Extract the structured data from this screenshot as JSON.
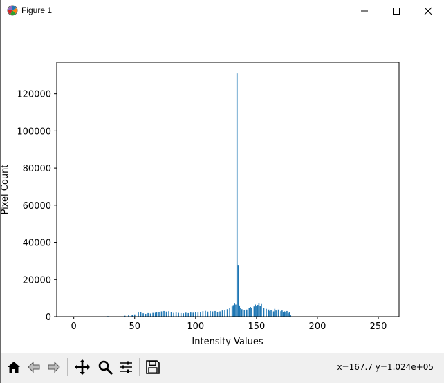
{
  "window": {
    "title": "Figure 1",
    "controls": [
      "minimize",
      "maximize",
      "close"
    ]
  },
  "toolbar": {
    "buttons": [
      "home-icon",
      "back-icon",
      "forward-icon",
      "pan-icon",
      "zoom-icon",
      "configure-subplots-icon",
      "save-icon"
    ],
    "coords_text": "x=167.7 y=1.024e+05"
  },
  "chart_data": {
    "type": "bar",
    "title": "",
    "xlabel": "Intensity Values",
    "ylabel": "Pixel Count",
    "xlim": [
      -14,
      267
    ],
    "ylim": [
      0,
      137000
    ],
    "xticks": [
      "0",
      "50",
      "100",
      "150",
      "200",
      "250"
    ],
    "yticks": [
      "0",
      "20000",
      "40000",
      "60000",
      "80000",
      "100000",
      "120000"
    ],
    "color": "#1f77b4",
    "grid": false,
    "bins": [
      [
        28,
        300
      ],
      [
        42,
        500
      ],
      [
        45,
        700
      ],
      [
        48,
        900
      ],
      [
        50,
        1200
      ],
      [
        53,
        2200
      ],
      [
        55,
        2400
      ],
      [
        57,
        1800
      ],
      [
        59,
        1500
      ],
      [
        61,
        1900
      ],
      [
        63,
        1700
      ],
      [
        65,
        2000
      ],
      [
        67,
        2100
      ],
      [
        68,
        2600
      ],
      [
        70,
        2300
      ],
      [
        72,
        2800
      ],
      [
        74,
        3000
      ],
      [
        76,
        2700
      ],
      [
        78,
        2900
      ],
      [
        80,
        2500
      ],
      [
        82,
        2000
      ],
      [
        84,
        2200
      ],
      [
        86,
        2000
      ],
      [
        88,
        1900
      ],
      [
        90,
        1800
      ],
      [
        92,
        2100
      ],
      [
        94,
        1900
      ],
      [
        96,
        2200
      ],
      [
        98,
        2100
      ],
      [
        100,
        2400
      ],
      [
        102,
        2200
      ],
      [
        104,
        2600
      ],
      [
        106,
        2900
      ],
      [
        108,
        3100
      ],
      [
        110,
        2700
      ],
      [
        112,
        3000
      ],
      [
        114,
        2800
      ],
      [
        116,
        3000
      ],
      [
        118,
        2600
      ],
      [
        120,
        2800
      ],
      [
        122,
        3300
      ],
      [
        124,
        3600
      ],
      [
        126,
        4000
      ],
      [
        128,
        4600
      ],
      [
        130,
        5500
      ],
      [
        131,
        6200
      ],
      [
        132,
        7000
      ],
      [
        133,
        6500
      ],
      [
        134,
        131000
      ],
      [
        135,
        27500
      ],
      [
        136,
        6000
      ],
      [
        137,
        4800
      ],
      [
        138,
        4000
      ],
      [
        140,
        3500
      ],
      [
        142,
        3800
      ],
      [
        144,
        4500
      ],
      [
        145,
        5200
      ],
      [
        146,
        4600
      ],
      [
        148,
        5500
      ],
      [
        149,
        6500
      ],
      [
        150,
        5800
      ],
      [
        151,
        6300
      ],
      [
        152,
        7200
      ],
      [
        153,
        5600
      ],
      [
        154,
        6800
      ],
      [
        156,
        4800
      ],
      [
        158,
        4200
      ],
      [
        160,
        3800
      ],
      [
        161,
        3000
      ],
      [
        162,
        3500
      ],
      [
        164,
        2800
      ],
      [
        165,
        4200
      ],
      [
        166,
        3300
      ],
      [
        168,
        3800
      ],
      [
        170,
        2900
      ],
      [
        171,
        3300
      ],
      [
        172,
        2500
      ],
      [
        173,
        2800
      ],
      [
        174,
        2200
      ],
      [
        175,
        3000
      ],
      [
        176,
        1800
      ],
      [
        177,
        2500
      ],
      [
        178,
        700
      ]
    ]
  }
}
